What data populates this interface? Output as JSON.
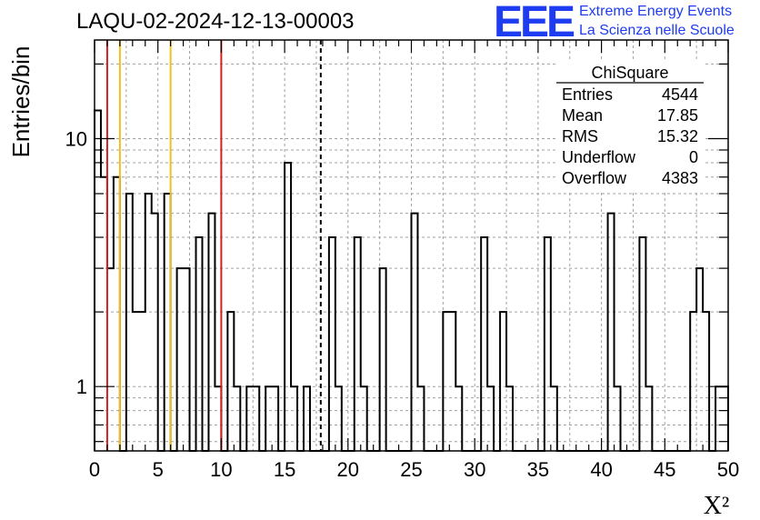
{
  "header": {
    "title": "LAQU-02-2024-12-13-00003",
    "logo_text": "EEE",
    "logo_line1": "Extreme Energy Events",
    "logo_line2": "La Scienza nelle Scuole"
  },
  "stats_box": {
    "title": "ChiSquare",
    "rows": [
      {
        "label": "Entries",
        "value": "4544"
      },
      {
        "label": "Mean",
        "value": "17.85"
      },
      {
        "label": "RMS",
        "value": "15.32"
      },
      {
        "label": "Underflow",
        "value": "0"
      },
      {
        "label": "Overflow",
        "value": "4383"
      }
    ]
  },
  "colors": {
    "red_line": "#d42020",
    "yellow_line": "#f0c020",
    "hist": "#000000",
    "grid": "#a0a0a0"
  },
  "chart_data": {
    "type": "histogram",
    "title": "LAQU-02-2024-12-13-00003",
    "xlabel": "X²",
    "ylabel": "Entries/bin",
    "xlim": [
      0,
      50
    ],
    "ylim": [
      0.55,
      25
    ],
    "yscale": "log",
    "bin_width": 0.5,
    "x_ticks": [
      "0",
      "5",
      "10",
      "15",
      "20",
      "25",
      "30",
      "35",
      "40",
      "45",
      "50"
    ],
    "y_ticks": [
      {
        "value": 1,
        "label": "1"
      },
      {
        "value": 10,
        "label": "10"
      }
    ],
    "values": [
      13,
      7,
      3,
      7,
      0,
      6,
      2,
      2,
      6,
      5,
      0,
      6,
      0,
      3,
      3,
      0,
      4,
      0,
      5,
      1,
      0,
      2,
      1,
      0,
      1,
      1,
      0,
      1,
      1,
      0,
      8,
      1,
      0,
      1,
      0,
      0,
      0,
      4,
      1,
      0,
      0,
      4,
      1,
      0,
      0,
      3,
      0,
      0,
      0,
      0,
      5,
      1,
      0,
      0,
      0,
      2,
      2,
      1,
      0,
      0,
      0,
      4,
      1,
      0,
      2,
      1,
      0,
      0,
      0,
      0,
      0,
      4,
      1,
      0,
      0,
      0,
      0,
      0,
      0,
      0,
      0,
      5,
      1,
      0,
      0,
      0,
      4,
      1,
      0,
      0,
      0,
      0,
      0,
      0,
      2,
      3,
      2,
      0,
      1,
      1
    ],
    "vertical_lines": [
      {
        "x": 1.0,
        "color": "red",
        "style": "solid"
      },
      {
        "x": 2.0,
        "color": "yellow",
        "style": "solid"
      },
      {
        "x": 6.0,
        "color": "yellow",
        "style": "solid"
      },
      {
        "x": 10.0,
        "color": "red",
        "style": "solid"
      },
      {
        "x": 17.85,
        "color": "black",
        "style": "dashed"
      }
    ],
    "grid": true,
    "legend": "top-right stats box"
  }
}
